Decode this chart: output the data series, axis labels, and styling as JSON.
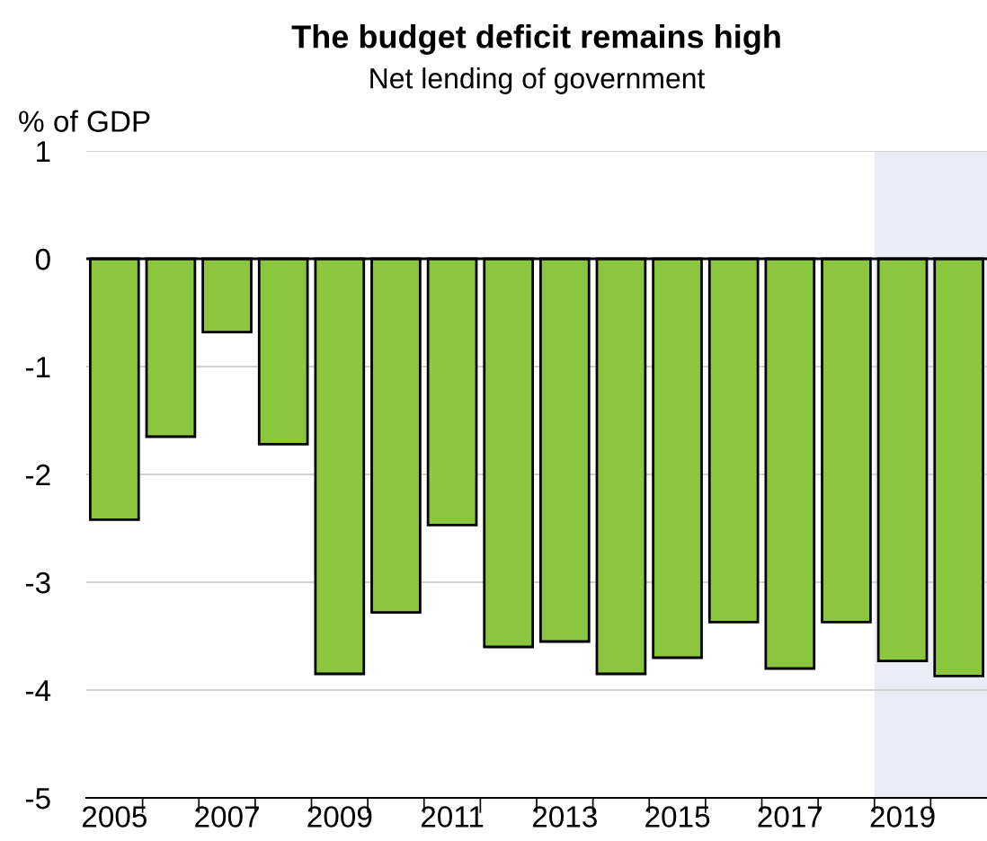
{
  "chart_data": {
    "type": "bar",
    "title": "The budget deficit remains high",
    "subtitle": "Net lending of government",
    "ylabel": "% of GDP",
    "x": [
      2005,
      2006,
      2007,
      2008,
      2009,
      2010,
      2011,
      2012,
      2013,
      2014,
      2015,
      2016,
      2017,
      2018,
      2019,
      2020
    ],
    "values": [
      -2.42,
      -1.65,
      -0.68,
      -1.72,
      -3.85,
      -3.28,
      -2.47,
      -3.6,
      -3.55,
      -3.85,
      -3.7,
      -3.37,
      -3.8,
      -3.37,
      -3.73,
      -3.87
    ],
    "color": "#8cc63f",
    "xlim": [
      2004.5,
      2020.5
    ],
    "xticks": [
      2005,
      2007,
      2009,
      2011,
      2013,
      2015,
      2017,
      2019,
      {
        "value": 2005.5,
        "label": null
      },
      {
        "value": 2006.5,
        "label": null
      },
      {
        "value": 2007.5,
        "label": null
      },
      {
        "value": 2008.5,
        "label": null
      },
      {
        "value": 2009.5,
        "label": null
      },
      {
        "value": 2010.5,
        "label": null
      },
      {
        "value": 2011.5,
        "label": null
      },
      {
        "value": 2012.5,
        "label": null
      },
      {
        "value": 2013.5,
        "label": null
      },
      {
        "value": 2014.5,
        "label": null
      },
      {
        "value": 2015.5,
        "label": null
      },
      {
        "value": 2016.5,
        "label": null
      },
      {
        "value": 2017.5,
        "label": null
      },
      {
        "value": 2018.5,
        "label": null
      },
      {
        "value": 2019.5,
        "label": null
      }
    ],
    "ylim": [
      -5,
      1
    ],
    "yticks": [
      {
        "value": -5,
        "label": "-5"
      },
      {
        "value": -4,
        "label": "-4"
      },
      {
        "value": -3,
        "label": "-3"
      },
      {
        "value": -2,
        "label": "-2"
      },
      {
        "value": -1,
        "label": "-1"
      },
      0,
      1
    ],
    "grid": "y",
    "legend": false,
    "bands": [
      {
        "axis": "x",
        "from": 2018.5,
        "to": 2020.5,
        "color": "#e9edf7"
      }
    ]
  }
}
